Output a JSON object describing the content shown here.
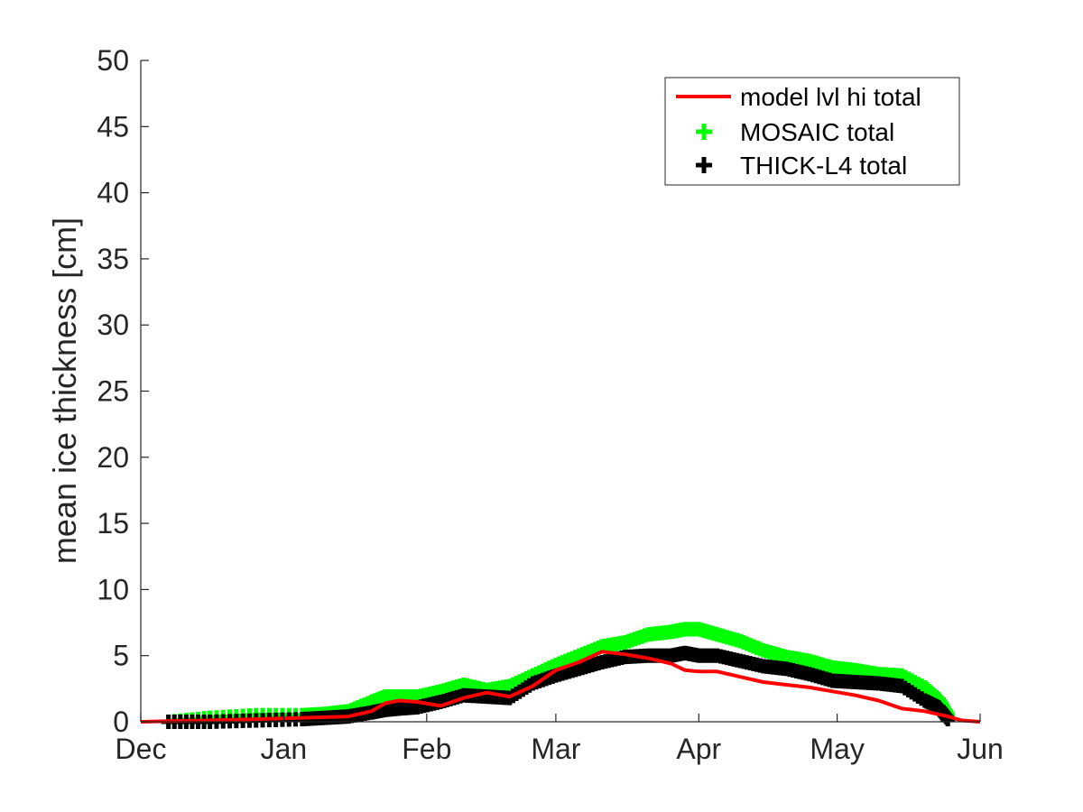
{
  "chart_data": {
    "type": "line",
    "title": "",
    "xlabel": "",
    "ylabel": "mean ice thickness [cm]",
    "xlim": [
      0,
      182
    ],
    "ylim": [
      0,
      50
    ],
    "grid": false,
    "legend_position": "top-right",
    "x_ticks": [
      {
        "value": 0,
        "label": "Dec"
      },
      {
        "value": 31,
        "label": "Jan"
      },
      {
        "value": 62,
        "label": "Feb"
      },
      {
        "value": 90,
        "label": "Mar"
      },
      {
        "value": 121,
        "label": "Apr"
      },
      {
        "value": 151,
        "label": "May"
      },
      {
        "value": 182,
        "label": "Jun"
      }
    ],
    "y_ticks": [
      {
        "value": 0,
        "label": "0"
      },
      {
        "value": 5,
        "label": "5"
      },
      {
        "value": 10,
        "label": "10"
      },
      {
        "value": 15,
        "label": "15"
      },
      {
        "value": 20,
        "label": "20"
      },
      {
        "value": 25,
        "label": "25"
      },
      {
        "value": 30,
        "label": "30"
      },
      {
        "value": 35,
        "label": "35"
      },
      {
        "value": 40,
        "label": "40"
      },
      {
        "value": 45,
        "label": "45"
      },
      {
        "value": 50,
        "label": "50"
      }
    ],
    "series": [
      {
        "name": "model lvl hi total",
        "kind": "line",
        "color": "#ff0000",
        "x": [
          0,
          6,
          15,
          25,
          35,
          45,
          50,
          53,
          56,
          60,
          65,
          70,
          75,
          80,
          85,
          90,
          95,
          100,
          105,
          110,
          115,
          118,
          121,
          125,
          130,
          135,
          140,
          145,
          150,
          155,
          160,
          165,
          170,
          175,
          178,
          182
        ],
        "y": [
          0,
          0.05,
          0.1,
          0.2,
          0.3,
          0.4,
          0.8,
          1.4,
          1.6,
          1.5,
          1.2,
          1.8,
          2.2,
          1.9,
          2.7,
          3.9,
          4.5,
          5.3,
          5.1,
          4.8,
          4.4,
          3.9,
          3.8,
          3.8,
          3.4,
          3.0,
          2.8,
          2.6,
          2.3,
          2.0,
          1.6,
          1.0,
          0.8,
          0.4,
          0.1,
          0
        ]
      },
      {
        "name": "MOSAIC total",
        "kind": "markers",
        "color": "#00ff00",
        "marker": "+",
        "x": [
          6,
          15,
          25,
          35,
          40,
          45,
          50,
          53,
          56,
          60,
          65,
          70,
          75,
          80,
          85,
          90,
          95,
          100,
          105,
          110,
          115,
          118,
          121,
          125,
          130,
          135,
          140,
          145,
          150,
          155,
          160,
          165,
          170,
          173,
          175
        ],
        "y": [
          0,
          0.3,
          0.5,
          0.5,
          0.6,
          0.8,
          1.5,
          1.9,
          1.9,
          1.9,
          2.3,
          2.8,
          2.4,
          2.7,
          3.5,
          4.3,
          5.0,
          5.7,
          6.0,
          6.6,
          6.8,
          7.0,
          7.0,
          6.6,
          6.1,
          5.4,
          4.9,
          4.6,
          4.1,
          3.9,
          3.6,
          3.5,
          2.6,
          1.7,
          0.5
        ]
      },
      {
        "name": "THICK-L4 total",
        "kind": "markers",
        "color": "#000000",
        "marker": "+",
        "x": [
          6,
          15,
          25,
          35,
          40,
          45,
          50,
          53,
          56,
          60,
          65,
          70,
          75,
          80,
          85,
          90,
          95,
          100,
          105,
          110,
          115,
          118,
          121,
          125,
          130,
          135,
          140,
          145,
          150,
          155,
          160,
          165,
          170,
          173,
          175
        ],
        "y": [
          0,
          0,
          0.1,
          0.2,
          0.3,
          0.4,
          0.7,
          0.9,
          1.0,
          1.1,
          1.5,
          2.0,
          1.9,
          1.8,
          2.9,
          3.5,
          4.0,
          4.5,
          4.9,
          5.0,
          5.0,
          5.2,
          5.0,
          5.0,
          4.6,
          4.2,
          4.0,
          3.6,
          3.1,
          3.0,
          2.9,
          2.7,
          1.6,
          1.1,
          0.2
        ]
      }
    ]
  }
}
